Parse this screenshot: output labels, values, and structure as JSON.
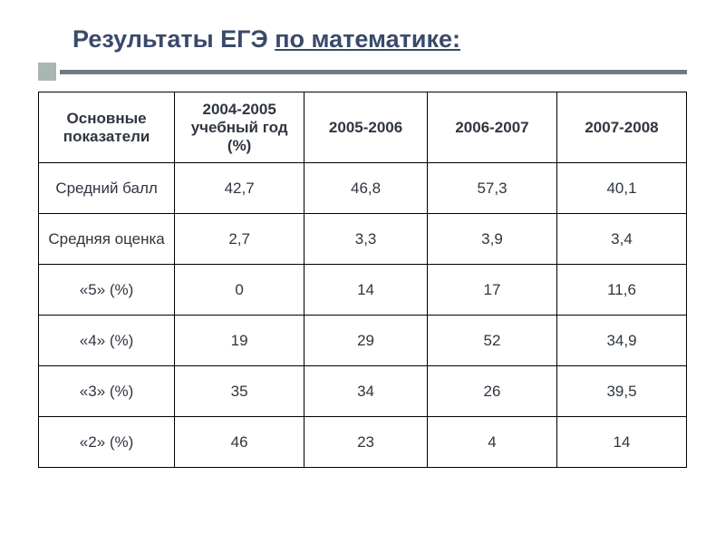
{
  "title": {
    "plain": "Результаты ЕГЭ ",
    "underlined": "по математике:"
  },
  "style": {
    "title_color": "#3a4a6b",
    "rule_square_color": "#a8b7b1",
    "rule_line_color": "#6b7b88",
    "border_color": "#000000",
    "background_color": "#ffffff",
    "font_family": "Arial",
    "title_fontsize": 27,
    "cell_fontsize": 17
  },
  "table": {
    "type": "table",
    "columns": [
      "Основные показатели",
      "2004-2005 учебный год (%)",
      "2005-2006",
      "2006-2007",
      "2007-2008"
    ],
    "rows": [
      {
        "label": "Средний балл",
        "values": [
          "42,7",
          "46,8",
          "57,3",
          "40,1"
        ]
      },
      {
        "label": "Средняя оценка",
        "values": [
          "2,7",
          "3,3",
          "3,9",
          "3,4"
        ]
      },
      {
        "label": "«5» (%)",
        "values": [
          "0",
          "14",
          "17",
          "11,6"
        ]
      },
      {
        "label": "«4» (%)",
        "values": [
          "19",
          "29",
          "52",
          "34,9"
        ]
      },
      {
        "label": "«3» (%)",
        "values": [
          "35",
          "34",
          "26",
          "39,5"
        ]
      },
      {
        "label": "«2» (%)",
        "values": [
          "46",
          "23",
          "4",
          "14"
        ]
      }
    ]
  }
}
